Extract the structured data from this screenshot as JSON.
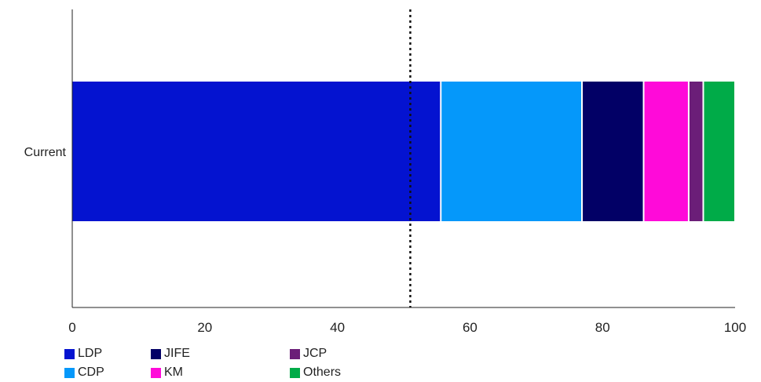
{
  "chart_data": {
    "type": "bar",
    "orientation": "horizontal",
    "stacked": true,
    "categories": [
      "Current"
    ],
    "series": [
      {
        "name": "LDP",
        "values": [
          55.6
        ],
        "color": "#0413D0"
      },
      {
        "name": "CDP",
        "values": [
          21.3
        ],
        "color": "#0598FA"
      },
      {
        "name": "JIFE",
        "values": [
          9.3
        ],
        "color": "#020066"
      },
      {
        "name": "KM",
        "values": [
          6.8
        ],
        "color": "#FF0AD9"
      },
      {
        "name": "JCP",
        "values": [
          2.2
        ],
        "color": "#6B1E78"
      },
      {
        "name": "Others",
        "values": [
          4.8
        ],
        "color": "#00AB48"
      }
    ],
    "xlim": [
      0,
      100
    ],
    "xticks": [
      "0",
      "20",
      "40",
      "60",
      "80",
      "100"
    ],
    "reference_line": {
      "x": 51,
      "style": "dotted"
    },
    "grid": false,
    "legend": {
      "position": "bottom-left",
      "columns": 3
    }
  }
}
